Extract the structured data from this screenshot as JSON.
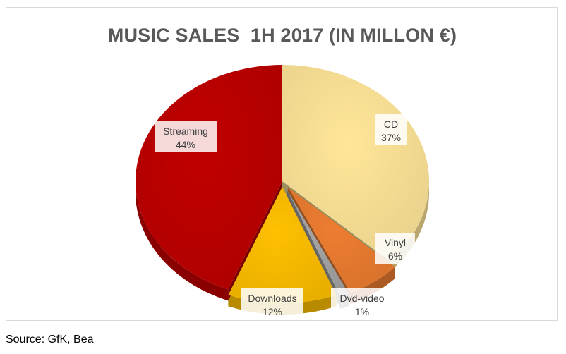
{
  "chart_data": {
    "type": "pie",
    "title": "MUSIC SALES  1H 2017 (IN MILLON €)",
    "slices": [
      {
        "label": "CD",
        "value": 37,
        "display": "37%",
        "color": "#FFE699"
      },
      {
        "label": "Vinyl",
        "value": 6,
        "display": "6%",
        "color": "#ED7D31"
      },
      {
        "label": "Dvd-video",
        "value": 1,
        "display": "1%",
        "color": "#A5A5A5"
      },
      {
        "label": "Downloads",
        "value": 12,
        "display": "12%",
        "color": "#FFC000"
      },
      {
        "label": "Streaming",
        "value": 44,
        "display": "44%",
        "color": "#C00000"
      }
    ],
    "style": "3d-exploded",
    "legend": "none"
  },
  "source": "Source: GfK, Bea"
}
